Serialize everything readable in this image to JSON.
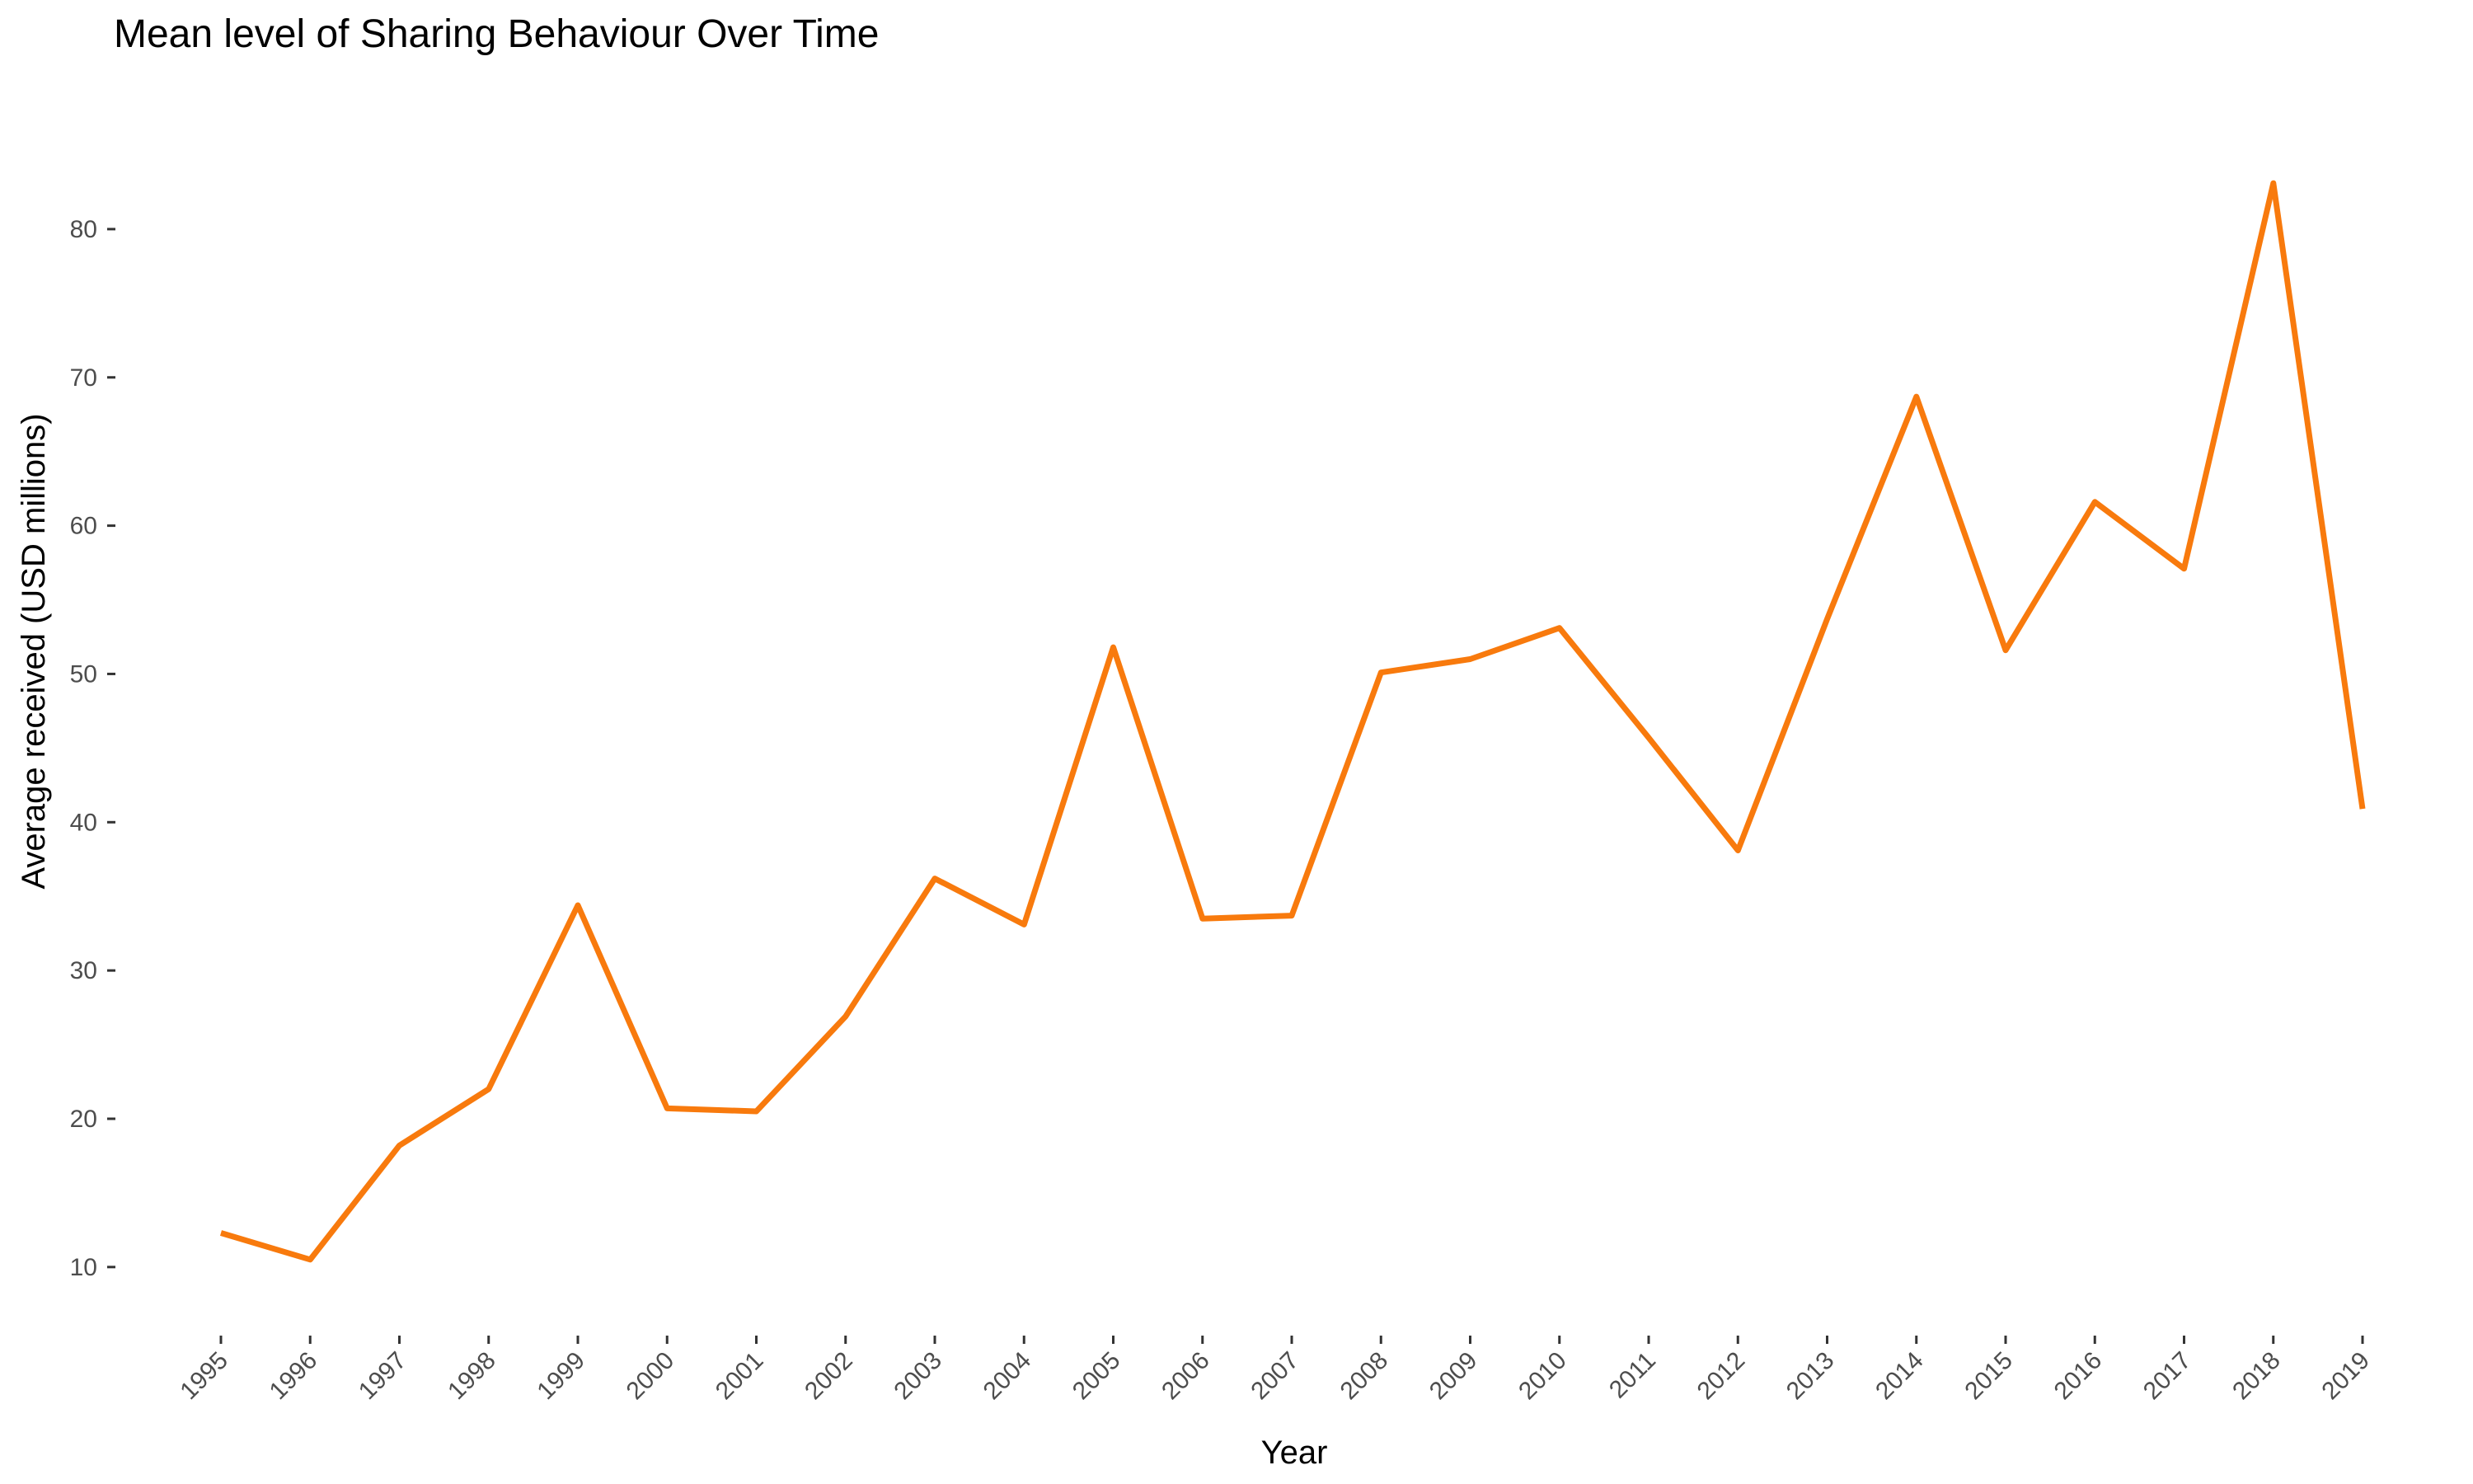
{
  "chart_data": {
    "type": "line",
    "title": "Mean level of Sharing Behaviour Over Time",
    "xlabel": "Year",
    "ylabel": "Average received (USD millions)",
    "x": [
      "1995",
      "1996",
      "1997",
      "1998",
      "1999",
      "2000",
      "2001",
      "2002",
      "2003",
      "2004",
      "2005",
      "2006",
      "2007",
      "2008",
      "2009",
      "2010",
      "2011",
      "2012",
      "2013",
      "2014",
      "2015",
      "2016",
      "2017",
      "2018",
      "2019"
    ],
    "series": [
      {
        "values": [
          12.3,
          10.5,
          18.2,
          22.0,
          34.4,
          20.7,
          20.5,
          26.9,
          36.2,
          33.1,
          51.8,
          33.5,
          33.7,
          50.1,
          51.0,
          53.1,
          45.7,
          38.1,
          53.7,
          68.7,
          51.6,
          61.6,
          57.1,
          83.1,
          40.9
        ]
      }
    ],
    "yticks": [
      10,
      20,
      30,
      40,
      50,
      60,
      70,
      80
    ],
    "ylim": [
      7.6,
      86.0
    ],
    "grid": false,
    "legend": "none",
    "line_color": "#f87a0d"
  }
}
